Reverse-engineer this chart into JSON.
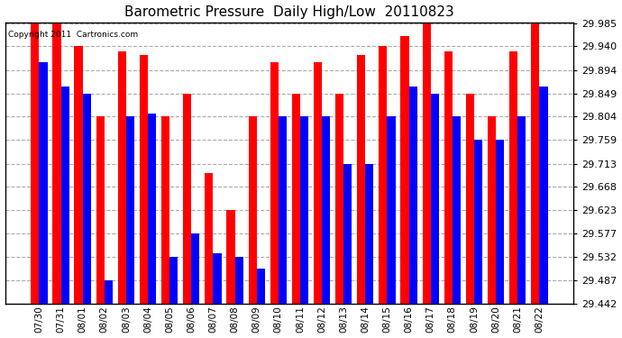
{
  "title": "Barometric Pressure  Daily High/Low  20110823",
  "copyright": "Copyright 2011  Cartronics.com",
  "categories": [
    "07/30",
    "07/31",
    "08/01",
    "08/02",
    "08/03",
    "08/04",
    "08/05",
    "08/06",
    "08/07",
    "08/08",
    "08/09",
    "08/10",
    "08/11",
    "08/12",
    "08/13",
    "08/14",
    "08/15",
    "08/16",
    "08/17",
    "08/18",
    "08/19",
    "08/20",
    "08/21",
    "08/22"
  ],
  "high_values": [
    29.985,
    29.985,
    29.94,
    29.804,
    29.93,
    29.923,
    29.804,
    29.849,
    29.695,
    29.623,
    29.804,
    29.91,
    29.849,
    29.91,
    29.849,
    29.923,
    29.94,
    29.96,
    29.985,
    29.93,
    29.849,
    29.804,
    29.93,
    29.985
  ],
  "low_values": [
    29.91,
    29.862,
    29.849,
    29.487,
    29.804,
    29.81,
    29.532,
    29.577,
    29.54,
    29.532,
    29.51,
    29.804,
    29.804,
    29.804,
    29.713,
    29.713,
    29.804,
    29.862,
    29.849,
    29.804,
    29.759,
    29.759,
    29.804,
    29.862
  ],
  "bar_color_high": "#ff0000",
  "bar_color_low": "#0000ff",
  "bg_color": "#ffffff",
  "plot_bg_color": "#ffffff",
  "grid_color": "#aaaaaa",
  "title_color": "#000000",
  "copyright_color": "#000000",
  "ymin": 29.442,
  "ymax": 29.985,
  "yticks": [
    29.442,
    29.487,
    29.532,
    29.577,
    29.623,
    29.668,
    29.713,
    29.759,
    29.804,
    29.849,
    29.894,
    29.94,
    29.985
  ],
  "bar_width": 0.38,
  "figsize": [
    6.9,
    3.75
  ],
  "dpi": 100
}
